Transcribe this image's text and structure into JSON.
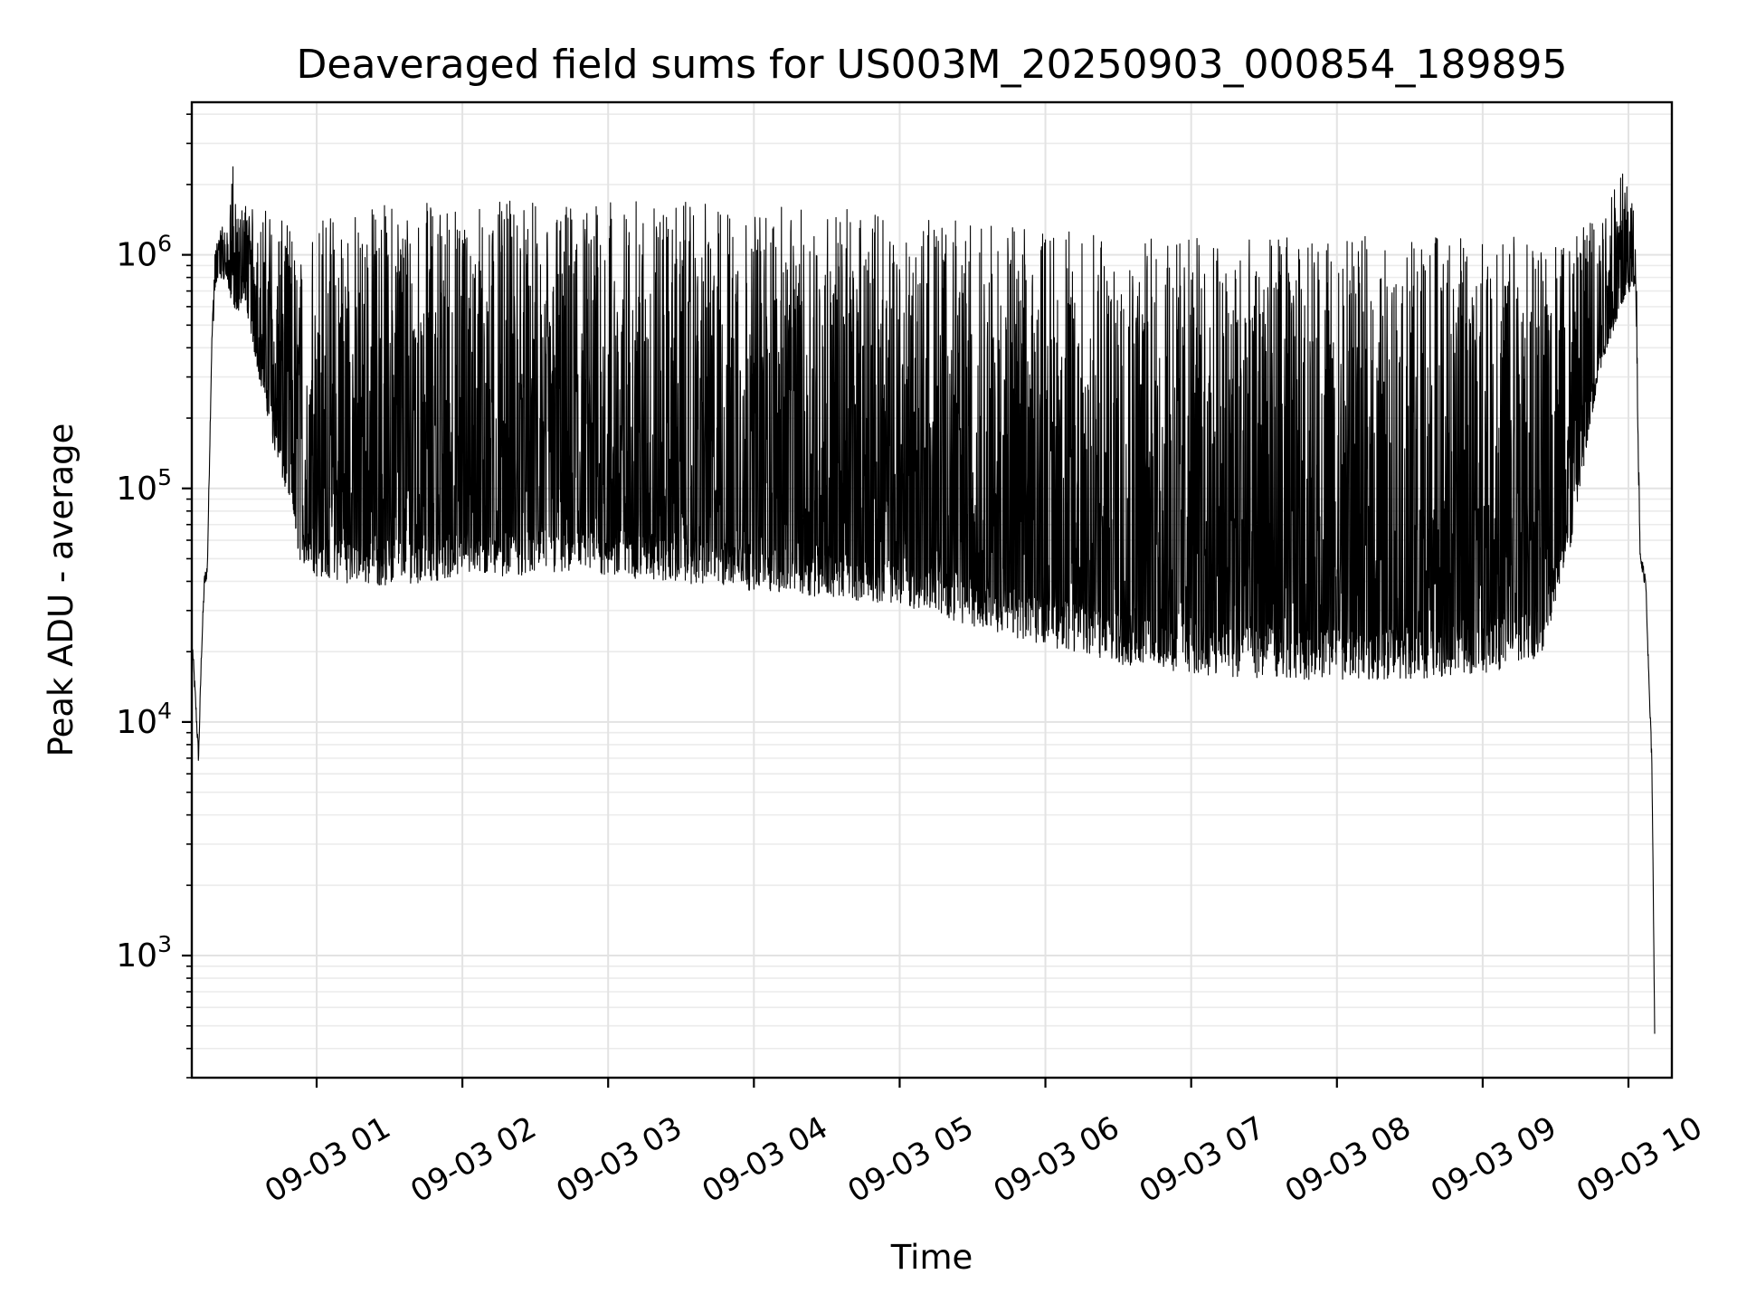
{
  "chart_data": {
    "type": "line",
    "title": "Deaveraged field sums for US003M_20250903_000854_189895",
    "xlabel": "Time",
    "ylabel": "Peak ADU - average",
    "y_scale": "log",
    "ylim": [
      300,
      4500000
    ],
    "xlim_hours": [
      0.148,
      10.0
    ],
    "grid": "major and minor",
    "line_color": "#000000",
    "x_ticks": [
      {
        "hour": 1,
        "label": "09-03 01"
      },
      {
        "hour": 2,
        "label": "09-03 02"
      },
      {
        "hour": 3,
        "label": "09-03 03"
      },
      {
        "hour": 4,
        "label": "09-03 04"
      },
      {
        "hour": 5,
        "label": "09-03 05"
      },
      {
        "hour": 6,
        "label": "09-03 06"
      },
      {
        "hour": 7,
        "label": "09-03 07"
      },
      {
        "hour": 8,
        "label": "09-03 08"
      },
      {
        "hour": 9,
        "label": "09-03 09"
      },
      {
        "hour": 10,
        "label": "09-03 10"
      }
    ],
    "y_ticks": [
      {
        "value": 1000,
        "base": "10",
        "exp": "3"
      },
      {
        "value": 10000,
        "base": "10",
        "exp": "4"
      },
      {
        "value": 100000,
        "base": "10",
        "exp": "5"
      },
      {
        "value": 1000000,
        "base": "10",
        "exp": "6"
      }
    ],
    "series": [
      {
        "x_hours": [
          0.15,
          0.17,
          0.19,
          0.21,
          0.23,
          0.25,
          0.28,
          0.3,
          0.33,
          0.36,
          0.38,
          0.4,
          0.42,
          0.45,
          0.5,
          0.55,
          0.6,
          0.65,
          0.7,
          0.75,
          0.8,
          0.83,
          0.85,
          0.9,
          1.0,
          1.2,
          1.5,
          2.0,
          2.5,
          3.0,
          3.5,
          4.0,
          4.5,
          5.0,
          5.5,
          6.0,
          6.5,
          7.0,
          7.5,
          8.0,
          8.5,
          9.0,
          9.4,
          9.6,
          9.8,
          9.95,
          10.05,
          10.08,
          10.12,
          10.14,
          10.16,
          10.17,
          10.18
        ],
        "y_base": [
          20000,
          12000,
          7000,
          20000,
          40000,
          45000,
          400000,
          900000,
          1100000,
          1000000,
          1100000,
          900000,
          800000,
          700000,
          900000,
          600000,
          400000,
          300000,
          200000,
          150000,
          120000,
          100000,
          80000,
          60000,
          55000,
          52000,
          50000,
          55000,
          56000,
          55000,
          52000,
          48000,
          45000,
          42000,
          34000,
          28000,
          23000,
          21000,
          20000,
          20000,
          20000,
          21000,
          25000,
          70000,
          400000,
          800000,
          1000000,
          50000,
          40000,
          15000,
          7000,
          2000,
          500
        ],
        "y_peak": [
          20000,
          12000,
          7000,
          20000,
          40000,
          45000,
          400000,
          1100000,
          1200000,
          1400000,
          1300000,
          1500000,
          2900000,
          1400000,
          1700000,
          1600000,
          1500000,
          1600000,
          1500000,
          1400000,
          1400000,
          1300000,
          1200000,
          1200000,
          1500000,
          1600000,
          1700000,
          1700000,
          1700000,
          1700000,
          1700000,
          1600000,
          1600000,
          1600000,
          1400000,
          1300000,
          1200000,
          1200000,
          1200000,
          1200000,
          1200000,
          1200000,
          1300000,
          1400000,
          1800000,
          2400000,
          1500000,
          50000,
          40000,
          15000,
          7000,
          2000,
          500
        ]
      }
    ]
  }
}
